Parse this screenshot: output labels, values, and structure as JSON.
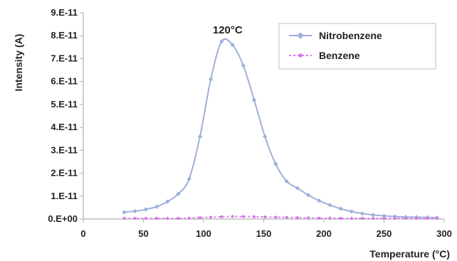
{
  "chart_data": {
    "type": "line",
    "title": "",
    "xlabel": "Temperature (°C)",
    "ylabel": "Intensity (A)",
    "xlim": [
      0,
      300
    ],
    "ylim": [
      0,
      9e-11
    ],
    "x_ticks": [
      0,
      50,
      100,
      150,
      200,
      250,
      300
    ],
    "x_tick_labels": [
      "0",
      "50",
      "100",
      "150",
      "200",
      "250",
      "300"
    ],
    "y_ticks": [
      0,
      1e-11,
      2e-11,
      3e-11,
      4e-11,
      5e-11,
      6e-11,
      7e-11,
      8e-11,
      9e-11
    ],
    "y_tick_labels": [
      "0.E+00",
      "1.E-11",
      "2.E-11",
      "3.E-11",
      "4.E-11",
      "5.E-11",
      "6.E-11",
      "7.E-11",
      "8.E-11",
      "9.E-11"
    ],
    "grid": false,
    "legend_position": "top-right",
    "series": [
      {
        "name": "Nitrobenzene",
        "color": "#9fb0dc",
        "line_style": "solid",
        "marker": "diamond",
        "x": [
          34,
          43,
          52,
          61,
          70,
          79,
          88,
          97,
          106,
          115,
          124,
          133,
          142,
          151,
          160,
          169,
          178,
          187,
          196,
          205,
          214,
          223,
          232,
          241,
          250,
          259,
          268,
          277,
          286,
          294
        ],
        "y": [
          3e-12,
          3.4e-12,
          4.2e-12,
          5.4e-12,
          7.6e-12,
          1.1e-11,
          1.75e-11,
          3.6e-11,
          6.1e-11,
          7.75e-11,
          7.6e-11,
          6.7e-11,
          5.2e-11,
          3.6e-11,
          2.4e-11,
          1.65e-11,
          1.35e-11,
          1.05e-11,
          8e-12,
          6.1e-12,
          4.5e-12,
          3.3e-12,
          2.4e-12,
          1.8e-12,
          1.4e-12,
          1.1e-12,
          9e-13,
          8e-13,
          7e-13,
          6e-13
        ]
      },
      {
        "name": "Benzene",
        "color": "#d679e6",
        "line_style": "dashed",
        "marker": "circle",
        "x": [
          34,
          43,
          52,
          61,
          70,
          79,
          88,
          97,
          106,
          115,
          124,
          133,
          142,
          151,
          160,
          169,
          178,
          187,
          196,
          205,
          214,
          223,
          232,
          241,
          250,
          259,
          268,
          277,
          286,
          294
        ],
        "y": [
          3e-13,
          3e-13,
          3e-13,
          3e-13,
          3e-13,
          3e-13,
          4e-13,
          6e-13,
          8e-13,
          1e-12,
          1.1e-12,
          1.1e-12,
          1e-12,
          9e-13,
          8e-13,
          7e-13,
          6e-13,
          5e-13,
          4e-13,
          4e-13,
          3e-13,
          3e-13,
          3e-13,
          3e-13,
          3e-13,
          3e-13,
          3e-13,
          3e-13,
          3e-13,
          3e-13
        ]
      }
    ],
    "annotations": [
      {
        "text": "120°C",
        "x": 120,
        "y": 8.1e-11
      }
    ]
  }
}
